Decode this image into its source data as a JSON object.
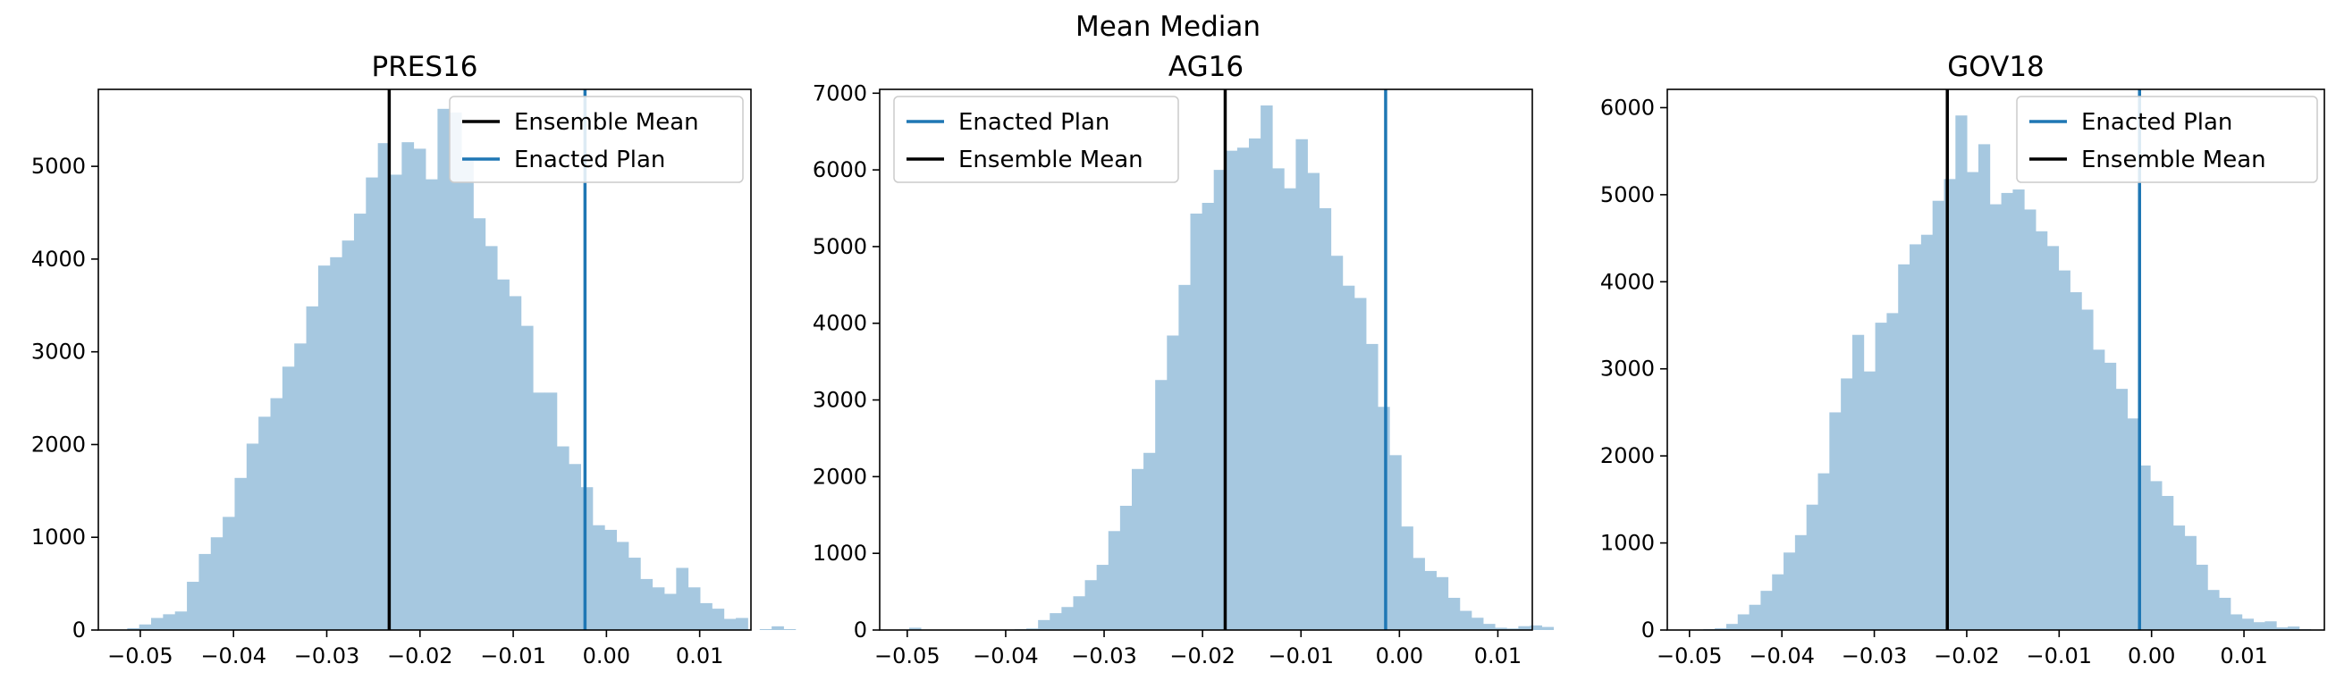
{
  "suptitle": "Mean Median",
  "colors": {
    "hist": "#a6c8e0",
    "enacted": "#1f77b4",
    "mean": "#000000",
    "axis": "#000000"
  },
  "chart_data": [
    {
      "type": "bar",
      "title": "PRES16",
      "xlabel": "",
      "ylabel": "",
      "xlim": [
        -0.0545,
        0.0155
      ],
      "ylim": [
        0,
        5830
      ],
      "xticks": [
        -0.05,
        -0.04,
        -0.03,
        -0.02,
        -0.01,
        0.0,
        0.01
      ],
      "xtick_labels": [
        "−0.05",
        "−0.04",
        "−0.03",
        "−0.02",
        "−0.01",
        "0.00",
        "0.01"
      ],
      "yticks": [
        0,
        1000,
        2000,
        3000,
        4000,
        5000
      ],
      "ytick_labels": [
        "0",
        "1000",
        "2000",
        "3000",
        "4000",
        "5000"
      ],
      "bin_start": -0.0514,
      "bin_width": 0.00128,
      "counts": [
        20,
        60,
        130,
        170,
        200,
        520,
        820,
        1000,
        1220,
        1640,
        2010,
        2300,
        2500,
        2840,
        3090,
        3490,
        3930,
        4020,
        4200,
        4490,
        4880,
        5250,
        4910,
        5260,
        5190,
        4860,
        5620,
        5580,
        5070,
        4440,
        4140,
        3780,
        3600,
        3280,
        2560,
        2560,
        1980,
        1790,
        1540,
        1130,
        1080,
        950,
        780,
        550,
        460,
        390,
        670,
        460,
        290,
        230,
        120,
        130,
        0,
        10,
        40,
        10,
        0
      ],
      "mean_line": -0.0233,
      "enacted_line": -0.0023,
      "legend": {
        "placement": "upper right",
        "entries": [
          "Ensemble Mean",
          "Enacted Plan"
        ],
        "entry_keys": [
          "mean",
          "enacted"
        ]
      }
    },
    {
      "type": "bar",
      "title": "AG16",
      "xlabel": "",
      "ylabel": "",
      "xlim": [
        -0.0528,
        0.0135
      ],
      "ylim": [
        0,
        7050
      ],
      "xticks": [
        -0.05,
        -0.04,
        -0.03,
        -0.02,
        -0.01,
        0.0,
        0.01
      ],
      "xtick_labels": [
        "−0.05",
        "−0.04",
        "−0.03",
        "−0.02",
        "−0.01",
        "0.00",
        "0.01"
      ],
      "yticks": [
        0,
        1000,
        2000,
        3000,
        4000,
        5000,
        6000,
        7000
      ],
      "ytick_labels": [
        "0",
        "1000",
        "2000",
        "3000",
        "4000",
        "5000",
        "6000",
        "7000"
      ],
      "bin_start": -0.0498,
      "bin_width": 0.00119,
      "counts": [
        30,
        0,
        0,
        0,
        0,
        0,
        0,
        0,
        0,
        10,
        20,
        130,
        220,
        300,
        440,
        650,
        850,
        1290,
        1620,
        2100,
        2310,
        3260,
        3840,
        4500,
        5430,
        5570,
        6000,
        6250,
        6290,
        6410,
        6840,
        6020,
        5760,
        6400,
        5960,
        5500,
        4880,
        4490,
        4330,
        3730,
        2910,
        2280,
        1350,
        940,
        770,
        690,
        420,
        250,
        160,
        80,
        30,
        20,
        50,
        60,
        40,
        0
      ],
      "mean_line": -0.0177,
      "enacted_line": -0.0014,
      "legend": {
        "placement": "upper left",
        "entries": [
          "Enacted Plan",
          "Ensemble Mean"
        ],
        "entry_keys": [
          "enacted",
          "mean"
        ]
      }
    },
    {
      "type": "bar",
      "title": "GOV18",
      "xlabel": "",
      "ylabel": "",
      "xlim": [
        -0.0524,
        0.0187
      ],
      "ylim": [
        0,
        6210
      ],
      "xticks": [
        -0.05,
        -0.04,
        -0.03,
        -0.02,
        -0.01,
        0.0,
        0.01
      ],
      "xtick_labels": [
        "−0.05",
        "−0.04",
        "−0.03",
        "−0.02",
        "−0.01",
        "0.00",
        "0.01"
      ],
      "yticks": [
        0,
        1000,
        2000,
        3000,
        4000,
        5000,
        6000
      ],
      "ytick_labels": [
        "0",
        "1000",
        "2000",
        "3000",
        "4000",
        "5000",
        "6000"
      ],
      "bin_start": -0.0485,
      "bin_width": 0.00124,
      "counts": [
        10,
        20,
        70,
        180,
        290,
        450,
        640,
        890,
        1090,
        1440,
        1800,
        2500,
        2890,
        3390,
        2970,
        3530,
        3640,
        4200,
        4430,
        4540,
        4930,
        5180,
        5910,
        5260,
        5580,
        4890,
        5020,
        5060,
        4830,
        4580,
        4410,
        4130,
        3880,
        3680,
        3220,
        3070,
        2770,
        2430,
        1890,
        1710,
        1540,
        1200,
        1080,
        750,
        460,
        370,
        180,
        130,
        90,
        100,
        30,
        40,
        10,
        0
      ],
      "mean_line": -0.0221,
      "enacted_line": -0.0013,
      "legend": {
        "placement": "upper right",
        "entries": [
          "Enacted Plan",
          "Ensemble Mean"
        ],
        "entry_keys": [
          "enacted",
          "mean"
        ]
      }
    }
  ]
}
